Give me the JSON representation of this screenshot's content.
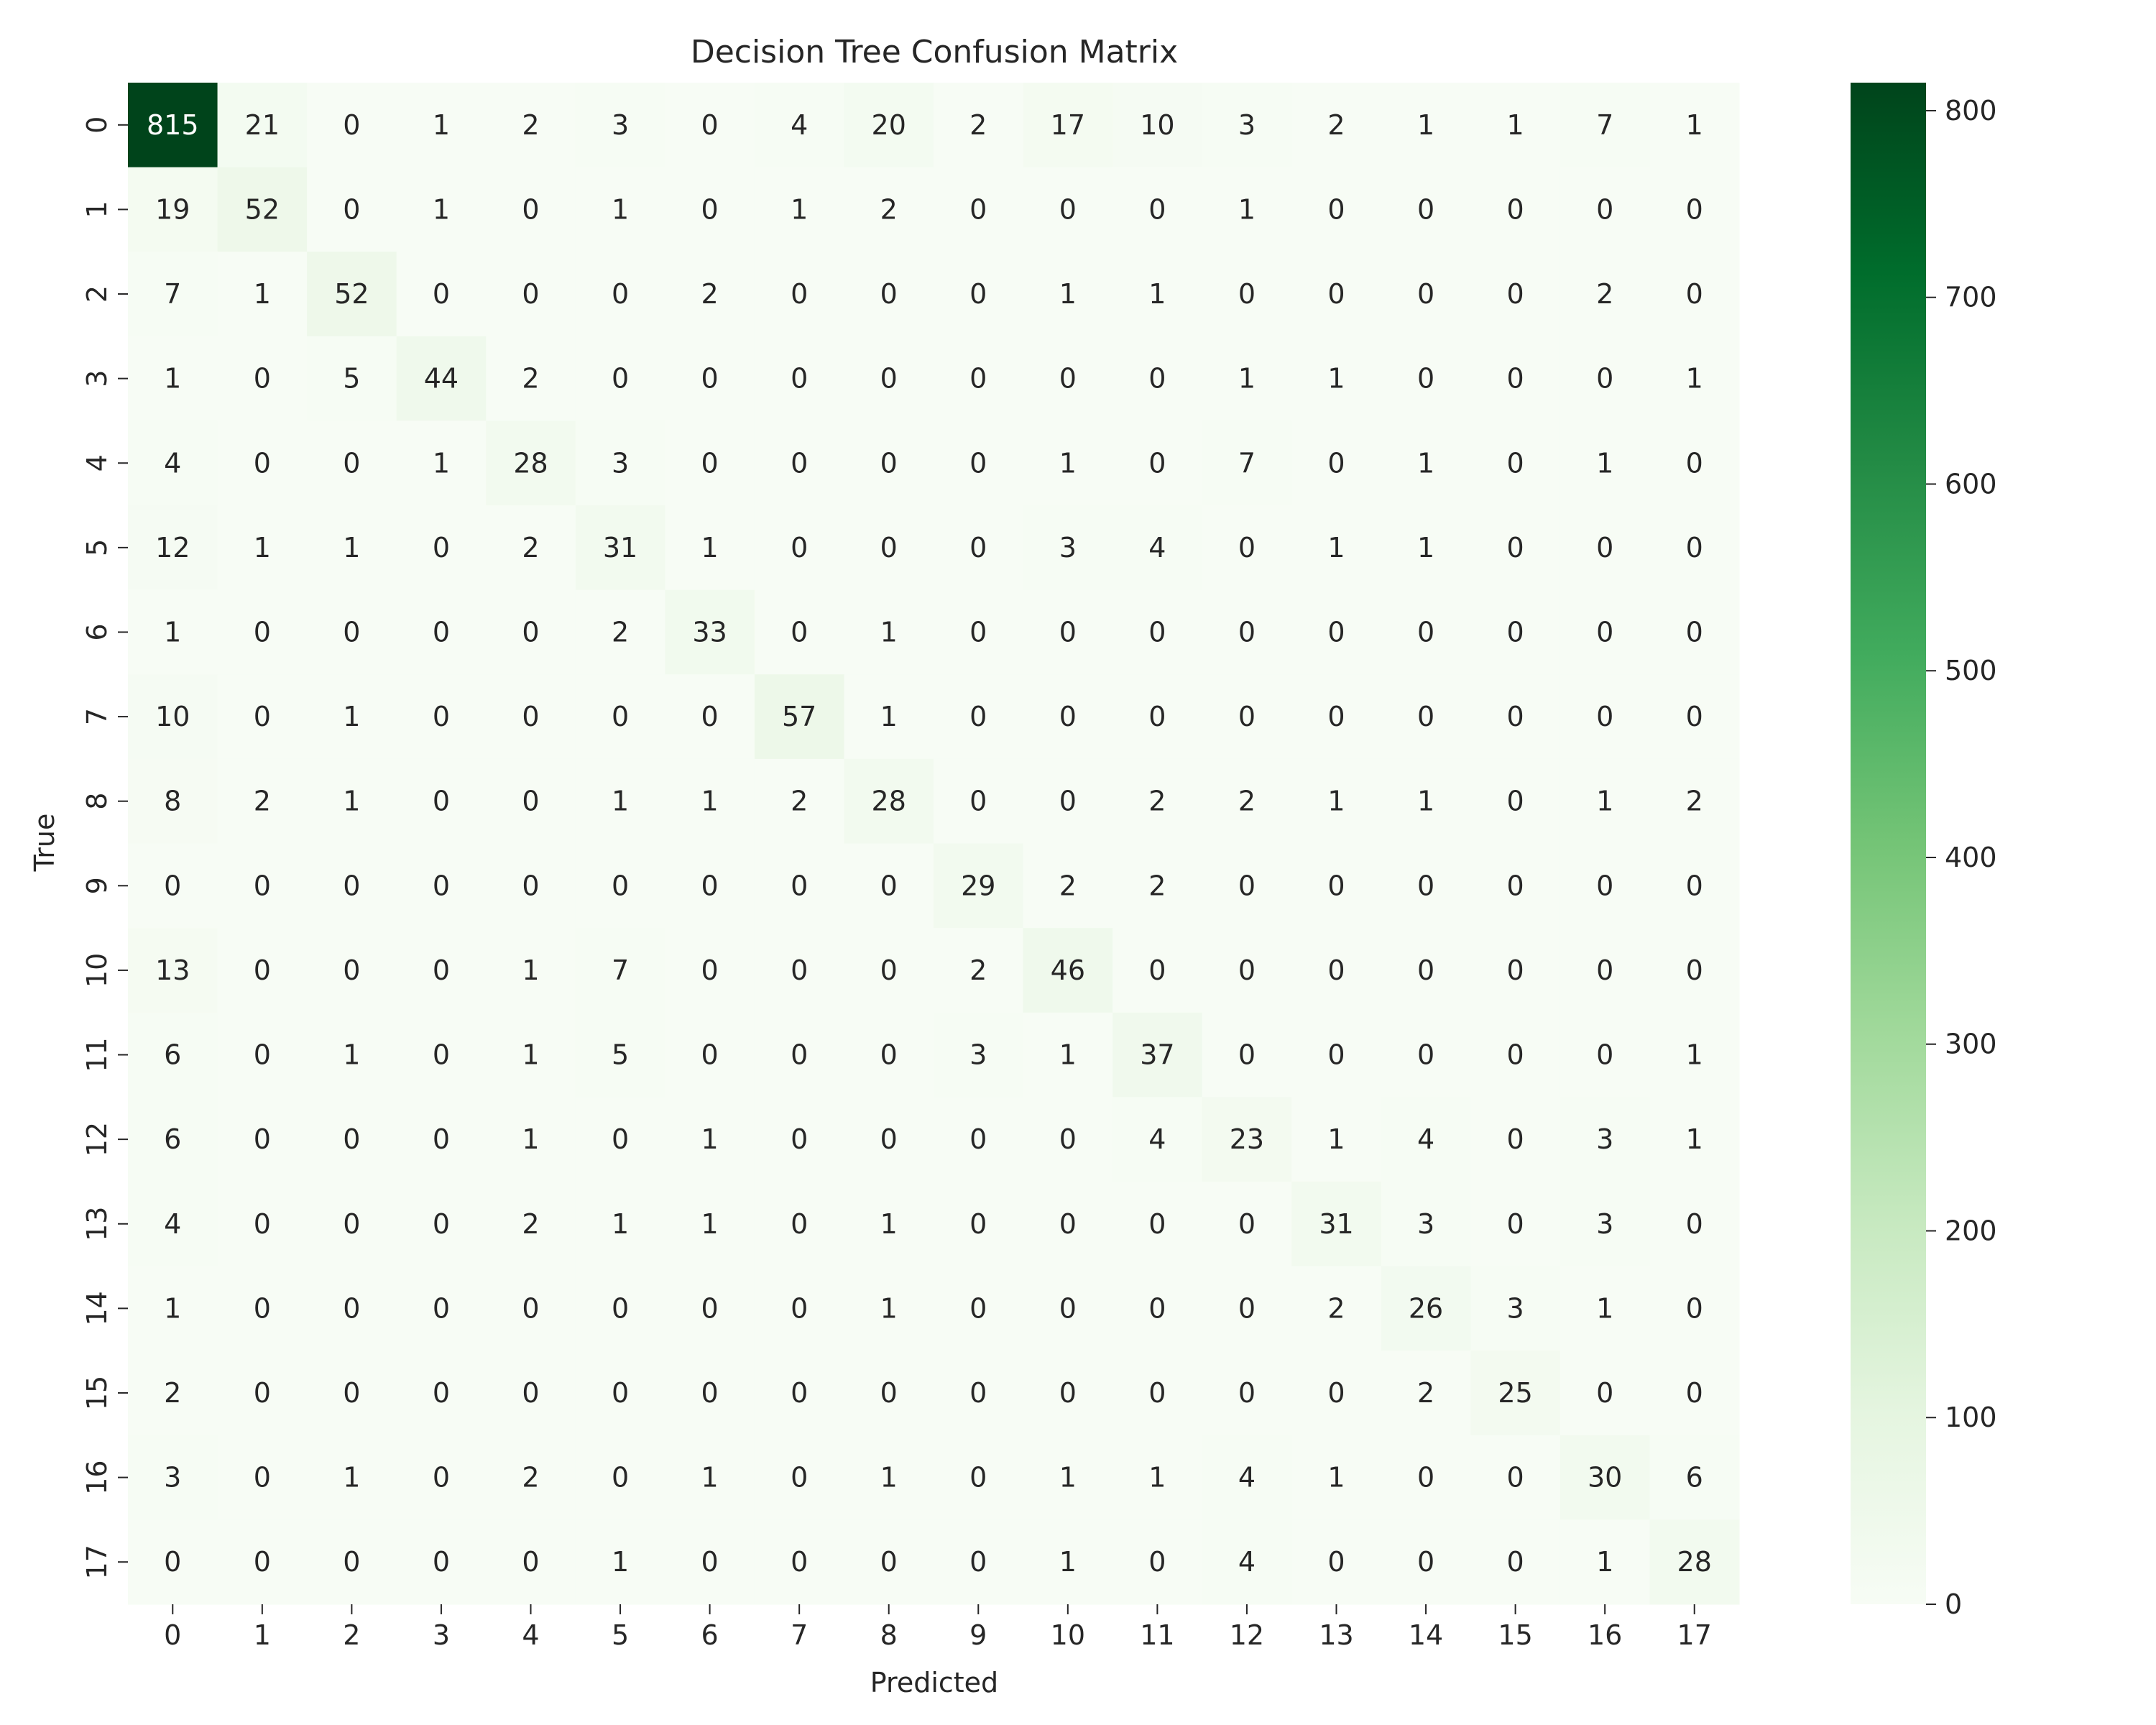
{
  "chart_data": {
    "type": "heatmap",
    "title": "Decision Tree Confusion Matrix",
    "xlabel": "Predicted",
    "ylabel": "True",
    "x_categories": [
      "0",
      "1",
      "2",
      "3",
      "4",
      "5",
      "6",
      "7",
      "8",
      "9",
      "10",
      "11",
      "12",
      "13",
      "14",
      "15",
      "16",
      "17"
    ],
    "y_categories": [
      "0",
      "1",
      "2",
      "3",
      "4",
      "5",
      "6",
      "7",
      "8",
      "9",
      "10",
      "11",
      "12",
      "13",
      "14",
      "15",
      "16",
      "17"
    ],
    "matrix": [
      [
        815,
        21,
        0,
        1,
        2,
        3,
        0,
        4,
        20,
        2,
        17,
        10,
        3,
        2,
        1,
        1,
        7,
        1
      ],
      [
        19,
        52,
        0,
        1,
        0,
        1,
        0,
        1,
        2,
        0,
        0,
        0,
        1,
        0,
        0,
        0,
        0,
        0
      ],
      [
        7,
        1,
        52,
        0,
        0,
        0,
        2,
        0,
        0,
        0,
        1,
        1,
        0,
        0,
        0,
        0,
        2,
        0
      ],
      [
        1,
        0,
        5,
        44,
        2,
        0,
        0,
        0,
        0,
        0,
        0,
        0,
        1,
        1,
        0,
        0,
        0,
        1
      ],
      [
        4,
        0,
        0,
        1,
        28,
        3,
        0,
        0,
        0,
        0,
        1,
        0,
        7,
        0,
        1,
        0,
        1,
        0
      ],
      [
        12,
        1,
        1,
        0,
        2,
        31,
        1,
        0,
        0,
        0,
        3,
        4,
        0,
        1,
        1,
        0,
        0,
        0
      ],
      [
        1,
        0,
        0,
        0,
        0,
        2,
        33,
        0,
        1,
        0,
        0,
        0,
        0,
        0,
        0,
        0,
        0,
        0
      ],
      [
        10,
        0,
        1,
        0,
        0,
        0,
        0,
        57,
        1,
        0,
        0,
        0,
        0,
        0,
        0,
        0,
        0,
        0
      ],
      [
        8,
        2,
        1,
        0,
        0,
        1,
        1,
        2,
        28,
        0,
        0,
        2,
        2,
        1,
        1,
        0,
        1,
        2
      ],
      [
        0,
        0,
        0,
        0,
        0,
        0,
        0,
        0,
        0,
        29,
        2,
        2,
        0,
        0,
        0,
        0,
        0,
        0
      ],
      [
        13,
        0,
        0,
        0,
        1,
        7,
        0,
        0,
        0,
        2,
        46,
        0,
        0,
        0,
        0,
        0,
        0,
        0
      ],
      [
        6,
        0,
        1,
        0,
        1,
        5,
        0,
        0,
        0,
        3,
        1,
        37,
        0,
        0,
        0,
        0,
        0,
        1
      ],
      [
        6,
        0,
        0,
        0,
        1,
        0,
        1,
        0,
        0,
        0,
        0,
        4,
        23,
        1,
        4,
        0,
        3,
        1
      ],
      [
        4,
        0,
        0,
        0,
        2,
        1,
        1,
        0,
        1,
        0,
        0,
        0,
        0,
        31,
        3,
        0,
        3,
        0
      ],
      [
        1,
        0,
        0,
        0,
        0,
        0,
        0,
        0,
        1,
        0,
        0,
        0,
        0,
        2,
        26,
        3,
        1,
        0
      ],
      [
        2,
        0,
        0,
        0,
        0,
        0,
        0,
        0,
        0,
        0,
        0,
        0,
        0,
        0,
        2,
        25,
        0,
        0
      ],
      [
        3,
        0,
        1,
        0,
        2,
        0,
        1,
        0,
        1,
        0,
        1,
        1,
        4,
        1,
        0,
        0,
        30,
        6
      ],
      [
        0,
        0,
        0,
        0,
        0,
        1,
        0,
        0,
        0,
        0,
        1,
        0,
        4,
        0,
        0,
        0,
        1,
        28
      ]
    ],
    "colormap": "Greens",
    "color_range": [
      0,
      815
    ],
    "colorbar_ticks": [
      0,
      100,
      200,
      300,
      400,
      500,
      600,
      700,
      800
    ],
    "colors": {
      "low": "#f7fcf5",
      "high": "#00441b",
      "text_dark": "#262626",
      "text_light": "#ffffff"
    }
  }
}
